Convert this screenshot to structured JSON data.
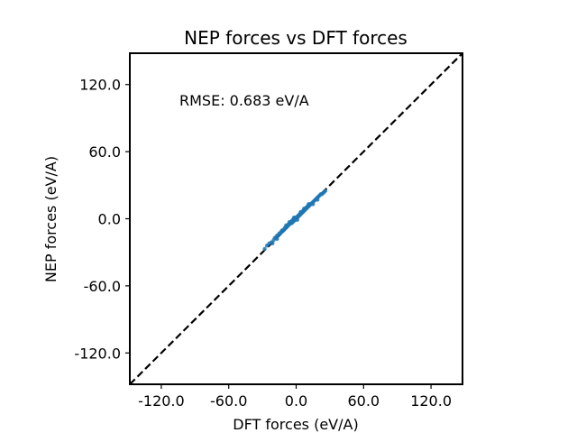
{
  "chart_data": {
    "type": "scatter",
    "title": "NEP forces vs DFT forces",
    "xlabel": "DFT forces (eV/A)",
    "ylabel": "NEP forces (eV/A)",
    "xlim": [
      -148,
      148
    ],
    "ylim": [
      -148,
      148
    ],
    "xticks": [
      -120,
      -60,
      0,
      60,
      120
    ],
    "yticks": [
      -120,
      -60,
      0,
      60,
      120
    ],
    "xtick_labels": [
      "-120.0",
      "-60.0",
      "0.0",
      "60.0",
      "120.0"
    ],
    "ytick_labels": [
      "-120.0",
      "-60.0",
      "0.0",
      "60.0",
      "120.0"
    ],
    "grid": false,
    "annotation": "RMSE: 0.683 eV/A",
    "reference_line": {
      "style": "dashed",
      "color": "#000000",
      "from": [
        -148,
        -148
      ],
      "to": [
        148,
        148
      ]
    },
    "point_color": "#1f77b4",
    "points": [
      [
        -28,
        -27
      ],
      [
        -26,
        -24
      ],
      [
        -24,
        -22
      ],
      [
        -22,
        -21
      ],
      [
        -20,
        -19
      ],
      [
        -19,
        -17
      ],
      [
        -18,
        -17
      ],
      [
        -17,
        -15
      ],
      [
        -16,
        -15
      ],
      [
        -15,
        -13
      ],
      [
        -14,
        -13
      ],
      [
        -13,
        -12
      ],
      [
        -12,
        -11
      ],
      [
        -12,
        -10
      ],
      [
        -11,
        -10
      ],
      [
        -10,
        -9
      ],
      [
        -10,
        -8
      ],
      [
        -9,
        -8
      ],
      [
        -8,
        -7
      ],
      [
        -8,
        -6
      ],
      [
        -7,
        -6
      ],
      [
        -7,
        -5
      ],
      [
        -6,
        -5
      ],
      [
        -5,
        -4
      ],
      [
        -5,
        -3
      ],
      [
        -4,
        -4
      ],
      [
        -4,
        -2
      ],
      [
        -3,
        -3
      ],
      [
        -3,
        -1
      ],
      [
        -2,
        -2
      ],
      [
        -2,
        0
      ],
      [
        -1,
        -1
      ],
      [
        -1,
        1
      ],
      [
        0,
        0
      ],
      [
        0,
        1
      ],
      [
        1,
        1
      ],
      [
        1,
        2
      ],
      [
        2,
        2
      ],
      [
        2,
        3
      ],
      [
        3,
        3
      ],
      [
        3,
        4
      ],
      [
        4,
        4
      ],
      [
        4,
        5
      ],
      [
        5,
        5
      ],
      [
        5,
        6
      ],
      [
        6,
        6
      ],
      [
        6,
        7
      ],
      [
        7,
        7
      ],
      [
        7,
        8
      ],
      [
        8,
        8
      ],
      [
        8,
        9
      ],
      [
        9,
        9
      ],
      [
        9,
        10
      ],
      [
        10,
        10
      ],
      [
        10,
        11
      ],
      [
        11,
        11
      ],
      [
        12,
        12
      ],
      [
        12,
        13
      ],
      [
        13,
        13
      ],
      [
        14,
        14
      ],
      [
        15,
        15
      ],
      [
        16,
        16
      ],
      [
        17,
        17
      ],
      [
        18,
        18
      ],
      [
        19,
        19
      ],
      [
        20,
        20
      ],
      [
        21,
        21
      ],
      [
        22,
        22
      ],
      [
        23,
        22
      ],
      [
        24,
        23
      ],
      [
        25,
        24
      ],
      [
        26,
        25
      ],
      [
        -6,
        -3
      ],
      [
        4,
        6
      ],
      [
        -9,
        -6
      ],
      [
        7,
        9
      ],
      [
        -2,
        1
      ],
      [
        1,
        -1
      ],
      [
        11,
        13
      ],
      [
        -13,
        -11
      ],
      [
        15,
        13
      ],
      [
        -17,
        -18
      ],
      [
        19,
        17
      ],
      [
        -21,
        -22
      ]
    ]
  }
}
